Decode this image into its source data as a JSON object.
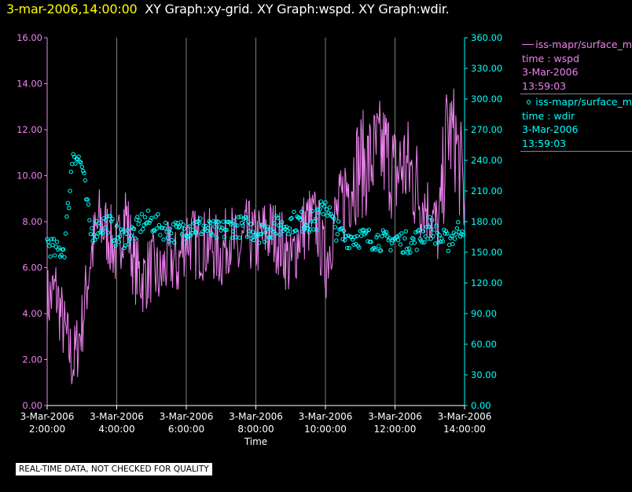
{
  "header": {
    "timestamp": "3-mar-2006,14:00:00",
    "titles": "XY Graph:xy-grid.  XY Graph:wspd.  XY Graph:wdir."
  },
  "colors": {
    "background": "#000000",
    "wspd": "#ee82ee",
    "wdir": "#00ffff",
    "grid": "#808080",
    "axis_text": "#ffffff",
    "header_timestamp": "#ffff00"
  },
  "legend": [
    {
      "label": "iss-mapr/surface_m",
      "lines": [
        "time : wspd",
        "3-Mar-2006",
        "13:59:03"
      ],
      "style": "line"
    },
    {
      "label": "iss-mapr/surface_m",
      "lines": [
        "time : wdir",
        "3-Mar-2006",
        "13:59:03"
      ],
      "style": "circle"
    }
  ],
  "footer": {
    "text": "REAL-TIME DATA, NOT CHECKED FOR QUALITY"
  },
  "chart_data": {
    "type": "line",
    "xlabel": "Time",
    "x_ticks": [
      {
        "hour": 2,
        "date": "3-Mar-2006",
        "time": "2:00:00"
      },
      {
        "hour": 4,
        "date": "3-Mar-2006",
        "time": "4:00:00"
      },
      {
        "hour": 6,
        "date": "3-Mar-2006",
        "time": "6:00:00"
      },
      {
        "hour": 8,
        "date": "3-Mar-2006",
        "time": "8:00:00"
      },
      {
        "hour": 10,
        "date": "3-Mar-2006",
        "time": "10:00:00"
      },
      {
        "hour": 12,
        "date": "3-Mar-2006",
        "time": "12:00:00"
      },
      {
        "hour": 14,
        "date": "3-Mar-2006",
        "time": "14:00:00"
      }
    ],
    "xlim_hours": [
      2,
      14
    ],
    "grid_x": true,
    "y_left": {
      "series": "wspd",
      "ylim": [
        0,
        16
      ],
      "ticks": [
        "0.00",
        "2.00",
        "4.00",
        "6.00",
        "8.00",
        "10.00",
        "12.00",
        "14.00",
        "16.00"
      ]
    },
    "y_right": {
      "series": "wdir",
      "ylim": [
        0,
        360
      ],
      "ticks": [
        "0.00",
        "30.00",
        "60.00",
        "90.00",
        "120.00",
        "150.00",
        "180.00",
        "210.00",
        "240.00",
        "270.00",
        "300.00",
        "330.00",
        "360.00"
      ]
    },
    "series": [
      {
        "name": "wspd",
        "style": "line",
        "axis": "left",
        "x_hours": [
          2.0,
          2.25,
          2.5,
          2.75,
          3.0,
          3.25,
          3.5,
          3.75,
          4.0,
          4.25,
          4.5,
          4.75,
          5.0,
          5.25,
          5.5,
          5.75,
          6.0,
          6.25,
          6.5,
          6.75,
          7.0,
          7.25,
          7.5,
          7.75,
          8.0,
          8.25,
          8.5,
          8.75,
          9.0,
          9.25,
          9.5,
          9.75,
          10.0,
          10.25,
          10.5,
          10.75,
          11.0,
          11.25,
          11.5,
          11.75,
          12.0,
          12.25,
          12.5,
          12.75,
          13.0,
          13.25,
          13.5,
          13.75,
          14.0
        ],
        "values": [
          4.5,
          5.0,
          3.2,
          1.8,
          3.5,
          6.5,
          8.0,
          7.5,
          6.5,
          8.5,
          6.0,
          5.5,
          6.0,
          5.5,
          6.5,
          6.0,
          7.5,
          7.0,
          7.0,
          7.0,
          6.5,
          7.5,
          6.5,
          7.5,
          7.0,
          7.5,
          7.5,
          7.0,
          6.0,
          7.5,
          8.0,
          8.0,
          6.0,
          8.0,
          9.0,
          10.0,
          10.5,
          10.5,
          11.0,
          11.0,
          10.0,
          10.5,
          10.0,
          9.0,
          8.5,
          7.5,
          12.0,
          11.5,
          9.0
        ]
      },
      {
        "name": "wdir",
        "style": "circle",
        "axis": "right",
        "x_hours": [
          2.0,
          2.25,
          2.5,
          2.75,
          3.0,
          3.25,
          3.5,
          3.75,
          4.0,
          4.25,
          4.5,
          4.75,
          5.0,
          5.25,
          5.5,
          5.75,
          6.0,
          6.25,
          6.5,
          6.75,
          7.0,
          7.25,
          7.5,
          7.75,
          8.0,
          8.25,
          8.5,
          8.75,
          9.0,
          9.25,
          9.5,
          9.75,
          10.0,
          10.25,
          10.5,
          10.75,
          11.0,
          11.25,
          11.5,
          11.75,
          12.0,
          12.25,
          12.5,
          12.75,
          13.0,
          13.25,
          13.5,
          13.75,
          14.0
        ],
        "values": [
          160,
          150,
          155,
          250,
          235,
          170,
          175,
          180,
          165,
          165,
          170,
          180,
          180,
          175,
          170,
          170,
          175,
          175,
          175,
          170,
          170,
          175,
          175,
          175,
          170,
          170,
          175,
          175,
          180,
          180,
          180,
          180,
          200,
          175,
          165,
          165,
          165,
          163,
          163,
          160,
          163,
          160,
          160,
          165,
          175,
          165,
          160,
          170,
          178
        ]
      }
    ]
  }
}
